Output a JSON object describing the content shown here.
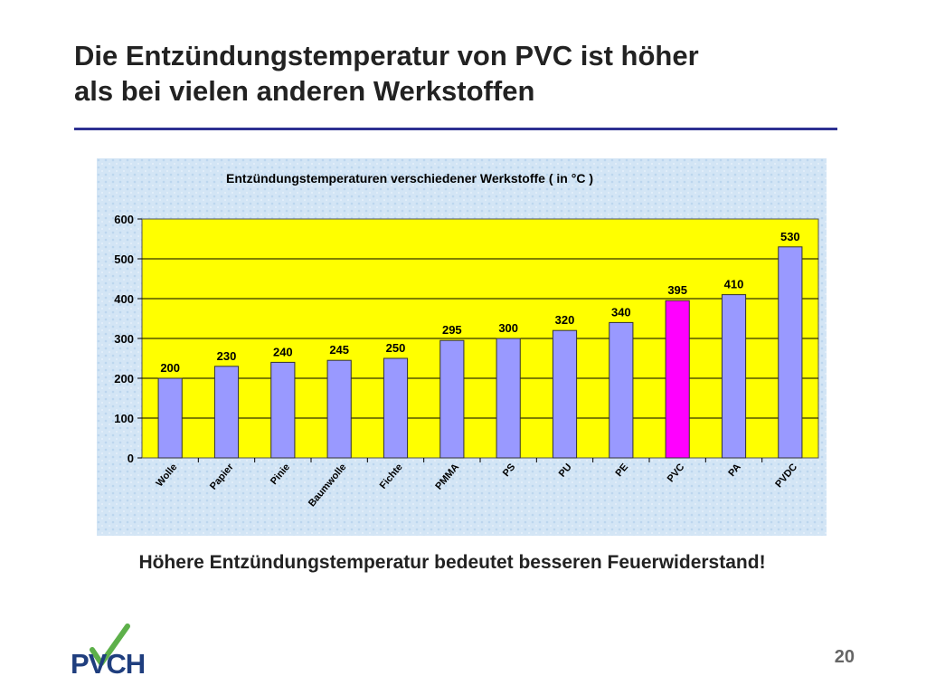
{
  "slide": {
    "title_line1": "Die Entzündungstemperatur von PVC ist höher",
    "title_line2": "als bei vielen anderen Werkstoffen",
    "caption": "Höhere Entzündungstemperatur bedeutet besseren Feuerwiderstand!",
    "page_number": "20",
    "logo_text": "PVCH"
  },
  "chart_data": {
    "type": "bar",
    "title": "Entzündungstemperaturen verschiedener Werkstoffe ( in °C )",
    "xlabel": "",
    "ylabel": "",
    "categories": [
      "Wolle",
      "Papier",
      "Pinie",
      "Baumwolle",
      "Fichte",
      "PMMA",
      "PS",
      "PU",
      "PE",
      "PVC",
      "PA",
      "PVDC"
    ],
    "values": [
      200,
      230,
      240,
      245,
      250,
      295,
      300,
      320,
      340,
      395,
      410,
      530
    ],
    "ylim": [
      0,
      600
    ],
    "yticks": [
      0,
      100,
      200,
      300,
      400,
      500,
      600
    ],
    "grid": true,
    "legend": "none",
    "highlight_category": "PVC",
    "colors": {
      "bar": "#9999ff",
      "highlight_bar": "#ff00ff",
      "plot_background": "#ffff00",
      "chart_background": "#cfe3f4",
      "logo_dark": "#1f3e7e",
      "logo_green": "#5db04a"
    }
  }
}
